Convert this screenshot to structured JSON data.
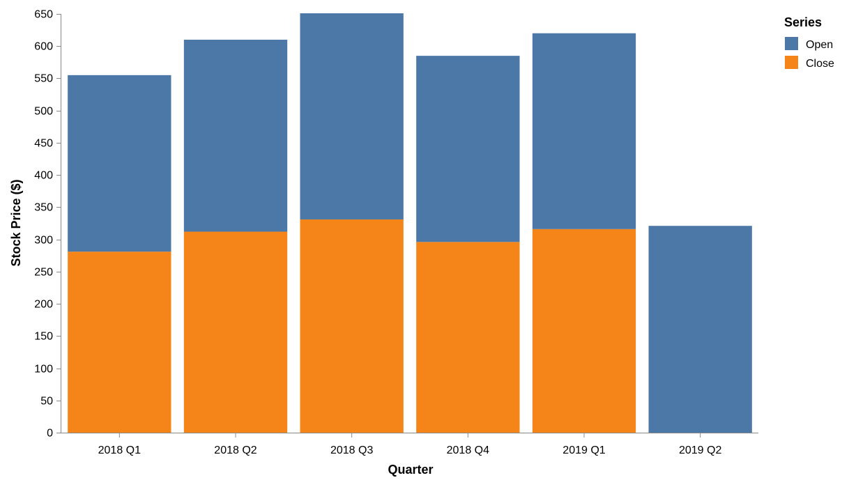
{
  "chart_data": {
    "type": "bar",
    "stacked": true,
    "title": "",
    "xlabel": "Quarter",
    "ylabel": "Stock Price ($)",
    "ylim": [
      0,
      650
    ],
    "yticks": [
      0,
      50,
      100,
      150,
      200,
      250,
      300,
      350,
      400,
      450,
      500,
      550,
      600,
      650
    ],
    "grid": false,
    "categories": [
      "2018 Q1",
      "2018 Q2",
      "2018 Q3",
      "2018 Q4",
      "2019 Q1",
      "2019 Q2"
    ],
    "series": [
      {
        "name": "Close",
        "color": "#f58518",
        "values": [
          281,
          312,
          331,
          296,
          316,
          0
        ]
      },
      {
        "name": "Open",
        "color": "#4c78a8",
        "values": [
          274,
          298,
          320,
          289,
          304,
          321
        ]
      }
    ],
    "legend": {
      "title": "Series",
      "placement": "top-right",
      "entries": [
        {
          "label": "Open",
          "color": "#4c78a8"
        },
        {
          "label": "Close",
          "color": "#f58518"
        }
      ]
    }
  }
}
